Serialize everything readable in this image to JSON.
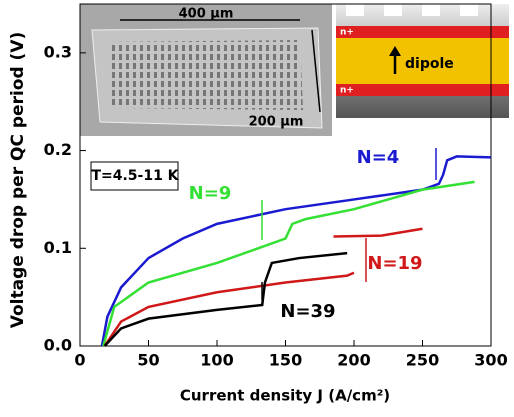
{
  "chart_data": {
    "type": "line",
    "x_label": "Current density J (A/cm²)",
    "y_label": "Voltage drop per QC period (V)",
    "xlim": [
      0,
      300
    ],
    "xticks": [
      0,
      50,
      100,
      150,
      200,
      250,
      300
    ],
    "ylim": [
      0,
      0.35
    ],
    "yticks": [
      {
        "value": 0,
        "label": "0.0"
      },
      0.1,
      0.2,
      0.3
    ],
    "annotations": [
      "T=4.5-11 K",
      "400 µm",
      "200 µm",
      "dipole",
      "n+",
      "n+"
    ],
    "series": [
      {
        "name": "N=4",
        "color": "#1a1ad0",
        "x": [
          16,
          20,
          30,
          50,
          75,
          100,
          150,
          200,
          250,
          262,
          265,
          268,
          275,
          300
        ],
        "values": [
          0,
          0.03,
          0.06,
          0.09,
          0.11,
          0.125,
          0.14,
          0.15,
          0.16,
          0.166,
          0.175,
          0.19,
          0.194,
          0.193
        ]
      },
      {
        "name": "N=9",
        "color": "#33e033",
        "x": [
          17,
          25,
          50,
          100,
          130,
          150,
          155,
          165,
          200,
          250,
          288
        ],
        "values": [
          0,
          0.04,
          0.065,
          0.085,
          0.1,
          0.11,
          0.125,
          0.13,
          0.14,
          0.16,
          0.168
        ]
      },
      {
        "name": "N=19",
        "color": "#d01818",
        "x": [
          18,
          30,
          50,
          100,
          150,
          195,
          200,
          null,
          185,
          220,
          250
        ],
        "values": [
          0,
          0.025,
          0.04,
          0.055,
          0.065,
          0.072,
          0.075,
          null,
          0.112,
          0.113,
          0.12
        ]
      },
      {
        "name": "N=39",
        "color": "#000000",
        "x": [
          18,
          30,
          50,
          100,
          133,
          135,
          140,
          160,
          195
        ],
        "values": [
          0,
          0.018,
          0.028,
          0.037,
          0.042,
          0.065,
          0.085,
          0.09,
          0.095
        ]
      }
    ]
  }
}
